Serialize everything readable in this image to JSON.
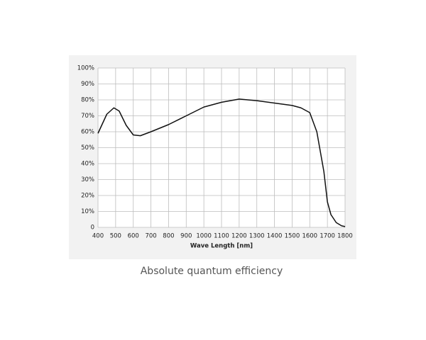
{
  "chart_data": {
    "type": "line",
    "xlabel": "Wave Length [nm]",
    "caption": "Absolute quantum efficiency",
    "x": [
      400,
      450,
      490,
      520,
      560,
      600,
      640,
      700,
      800,
      900,
      1000,
      1100,
      1200,
      1300,
      1400,
      1500,
      1550,
      1600,
      1640,
      1680,
      1700,
      1720,
      1750,
      1780,
      1800
    ],
    "series": [
      {
        "color": "#111111",
        "values": [
          59,
          71,
          75,
          73,
          64,
          58,
          57.5,
          60,
          64.5,
          70,
          75.5,
          78.5,
          80.5,
          79.5,
          78,
          76.5,
          75,
          72,
          60,
          35,
          16,
          8,
          3,
          1,
          0.5
        ]
      }
    ],
    "xlim": [
      400,
      1800
    ],
    "xticks": [
      400,
      500,
      600,
      700,
      800,
      900,
      1000,
      1100,
      1200,
      1300,
      1400,
      1500,
      1600,
      1700,
      1800
    ],
    "ylim": [
      0,
      100
    ],
    "yticks": [
      0,
      {
        "value": 10,
        "label": "10%"
      },
      {
        "value": 20,
        "label": "20%"
      },
      {
        "value": 30,
        "label": "30%"
      },
      {
        "value": 40,
        "label": "40%"
      },
      {
        "value": 50,
        "label": "50%"
      },
      {
        "value": 60,
        "label": "60%"
      },
      {
        "value": 70,
        "label": "70%"
      },
      {
        "value": 80,
        "label": "80%"
      },
      {
        "value": 90,
        "label": "90%"
      },
      {
        "value": 100,
        "label": "100%"
      }
    ],
    "grid": true
  }
}
